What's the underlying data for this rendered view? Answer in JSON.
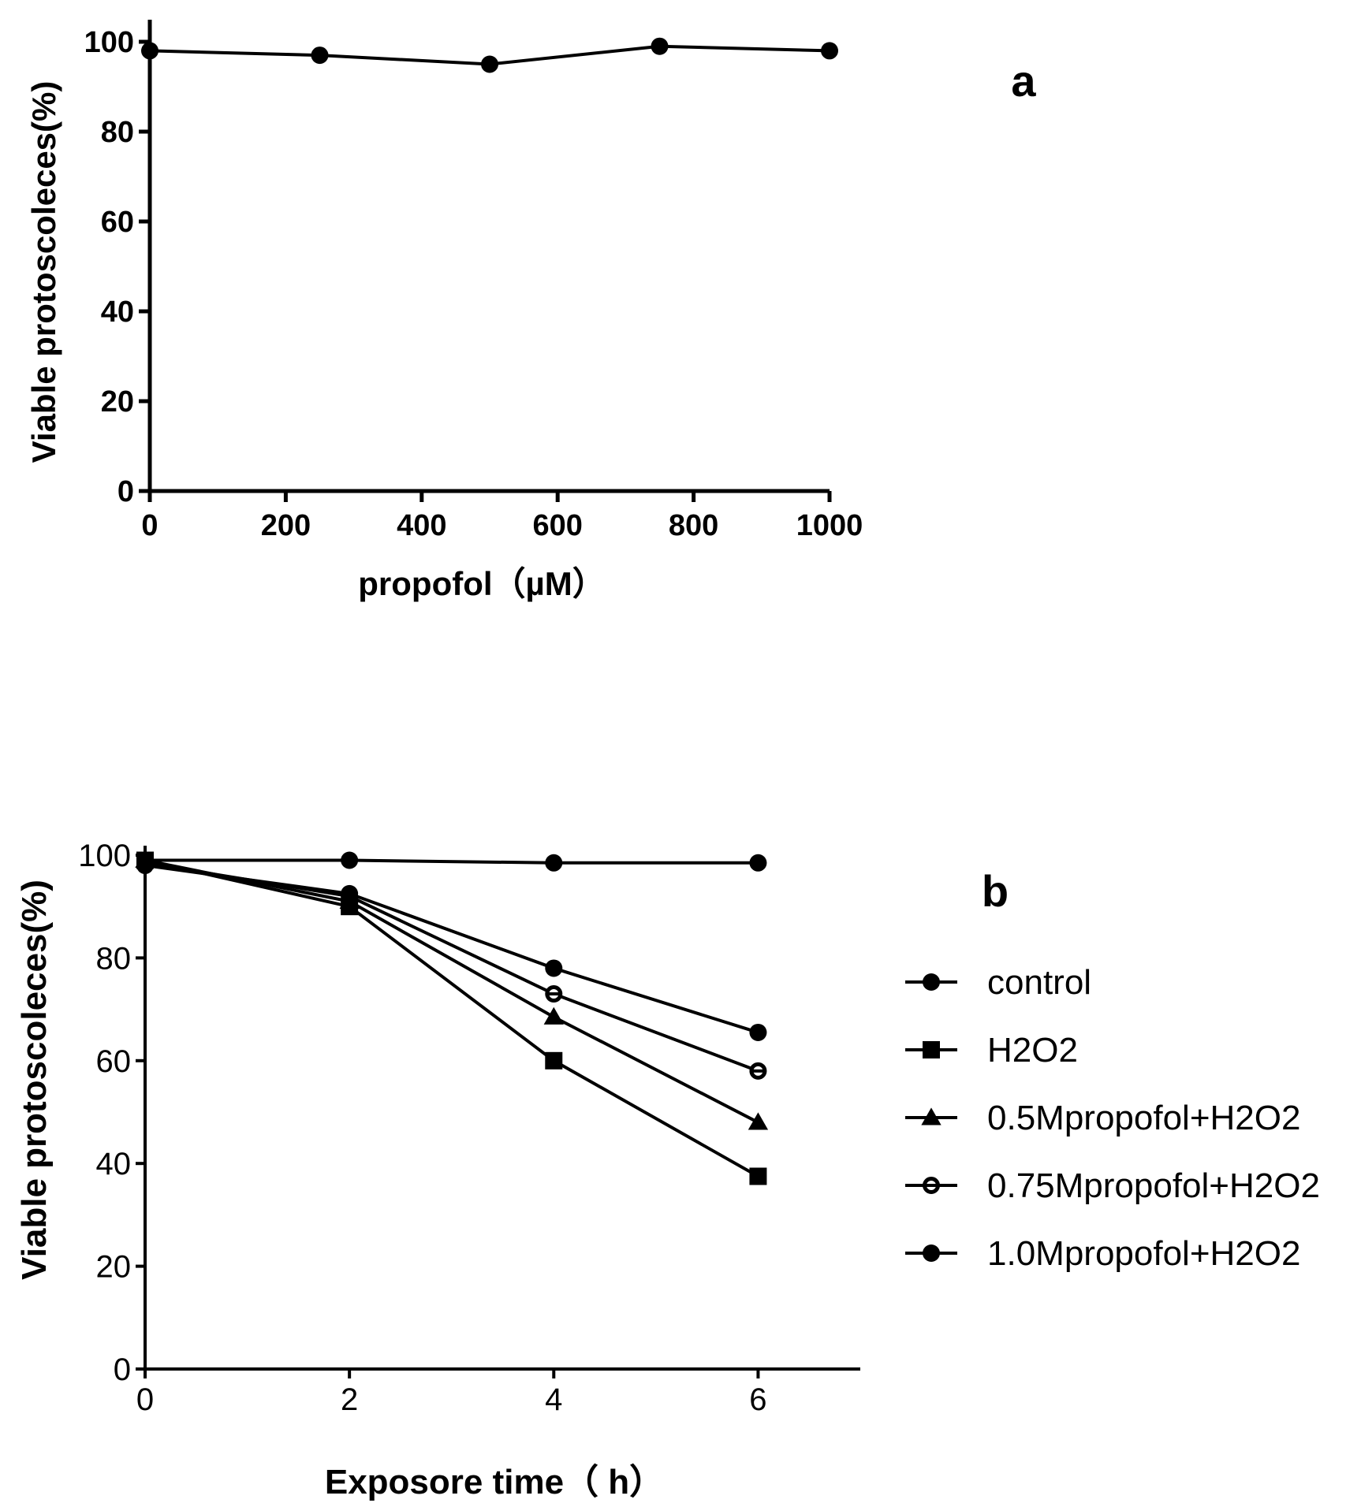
{
  "chart_data": [
    {
      "type": "line",
      "panel_label": "a",
      "xlabel": "propofol（µM）",
      "ylabel": "Viable protoscoleces(%)",
      "xlim": [
        0,
        1000
      ],
      "ylim": [
        0,
        100
      ],
      "xticks": [
        0,
        200,
        400,
        600,
        800,
        1000
      ],
      "yticks": [
        0,
        20,
        40,
        60,
        80,
        100
      ],
      "series": [
        {
          "name": "propofol",
          "marker": "circle",
          "x": [
            0,
            250,
            500,
            750,
            1000
          ],
          "y": [
            98,
            97,
            95,
            99,
            98
          ]
        }
      ]
    },
    {
      "type": "line",
      "panel_label": "b",
      "xlabel": "Exposore time（ h）",
      "ylabel": "Viable protoscoleces(%)",
      "xlim": [
        0,
        7
      ],
      "ylim": [
        0,
        100
      ],
      "xticks": [
        0,
        2,
        4,
        6
      ],
      "yticks": [
        0,
        20,
        40,
        60,
        80,
        100
      ],
      "x": [
        0,
        2,
        4,
        6
      ],
      "series": [
        {
          "name": "control",
          "marker": "circle",
          "values": [
            99,
            99,
            98.5,
            98.5
          ]
        },
        {
          "name": "H2O2",
          "marker": "square",
          "values": [
            99,
            90,
            60,
            37.5
          ]
        },
        {
          "name": "0.5Mpropofol+H2O2",
          "marker": "triangle",
          "values": [
            99,
            91,
            68.5,
            48
          ]
        },
        {
          "name": "0.75Mpropofol+H2O2",
          "marker": "open-circle",
          "values": [
            98.5,
            92,
            73,
            58
          ]
        },
        {
          "name": "1.0Mpropofol+H2O2",
          "marker": "circle",
          "values": [
            98,
            92.5,
            78,
            65.5
          ]
        }
      ]
    }
  ]
}
